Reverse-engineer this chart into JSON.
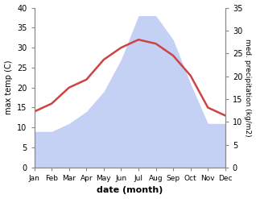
{
  "months": [
    "Jan",
    "Feb",
    "Mar",
    "Apr",
    "May",
    "Jun",
    "Jul",
    "Aug",
    "Sep",
    "Oct",
    "Nov",
    "Dec"
  ],
  "max_temp": [
    14,
    16,
    20,
    22,
    27,
    30,
    32,
    31,
    28,
    23,
    15,
    13
  ],
  "precipitation": [
    9,
    9,
    11,
    14,
    19,
    27,
    38,
    38,
    32,
    21,
    11,
    11
  ],
  "temp_color": "#cc4444",
  "precip_fill_color": "#c5d0f5",
  "temp_ylim": [
    0,
    40
  ],
  "precip_ylim": [
    0,
    35
  ],
  "ylabel_left": "max temp (C)",
  "ylabel_right": "med. precipitation (kg/m2)",
  "xlabel": "date (month)",
  "bg_color": "#ffffff",
  "axes_color": "#888888"
}
